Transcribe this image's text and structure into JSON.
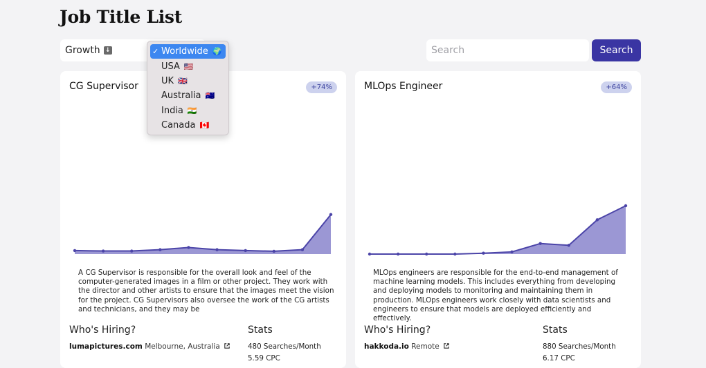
{
  "page": {
    "title": "Job Title List"
  },
  "controls": {
    "sort_label": "Growth",
    "sort_icon": "arrow-down-icon",
    "search_placeholder": "Search",
    "search_button": "Search"
  },
  "dropdown": {
    "options": [
      {
        "label": "Worldwide",
        "flag": "🌍",
        "selected": true
      },
      {
        "label": "USA",
        "flag": "🇺🇸",
        "selected": false
      },
      {
        "label": "UK",
        "flag": "🇬🇧",
        "selected": false
      },
      {
        "label": "Australia",
        "flag": "🇦🇺",
        "selected": false
      },
      {
        "label": "India",
        "flag": "🇮🇳",
        "selected": false
      },
      {
        "label": "Canada",
        "flag": "🇨🇦",
        "selected": false
      }
    ]
  },
  "cards": [
    {
      "title": "CG Supervisor",
      "growth": "+74%",
      "description": "A CG Supervisor is responsible for the overall look and feel of the computer-generated images in a film or other project. They work with the director and other artists to ensure that the images meet the vision for the project. CG Supervisors also oversee the work of the CG artists and technicians, and they may be",
      "hiring_heading": "Who's Hiring?",
      "stats_heading": "Stats",
      "hiring": [
        {
          "company": "lumapictures.com",
          "location": "Melbourne, Australia"
        },
        {
          "company": "",
          "location": ""
        }
      ],
      "stats": [
        "480 Searches/Month",
        "5.59 CPC"
      ],
      "trend": [
        4,
        3.5,
        3.5,
        5,
        7.5,
        5,
        4,
        3.2,
        5,
        45
      ]
    },
    {
      "title": "MLOps Engineer",
      "growth": "+64%",
      "description": "MLOps engineers are responsible for the end-to-end management of machine learning models. This includes everything from developing and deploying models to monitoring and maintaining them in production. MLOps engineers work closely with data scientists and engineers to ensure that models are deployed efficiently and effectively.",
      "hiring_heading": "Who's Hiring?",
      "stats_heading": "Stats",
      "hiring": [
        {
          "company": "hakkoda.io",
          "location": "Remote"
        },
        {
          "company": "",
          "location": ""
        }
      ],
      "stats": [
        "880 Searches/Month",
        "6.17 CPC"
      ],
      "trend": [
        0,
        0,
        0,
        0,
        1,
        2.5,
        12,
        10,
        39,
        55
      ]
    }
  ],
  "colors": {
    "accent": "#3a35a3",
    "chart_line": "#4b44a8",
    "chart_fill": "#9b97d4",
    "badge_bg": "#cdd2ee",
    "dropdown_selected": "#3d87f0"
  }
}
